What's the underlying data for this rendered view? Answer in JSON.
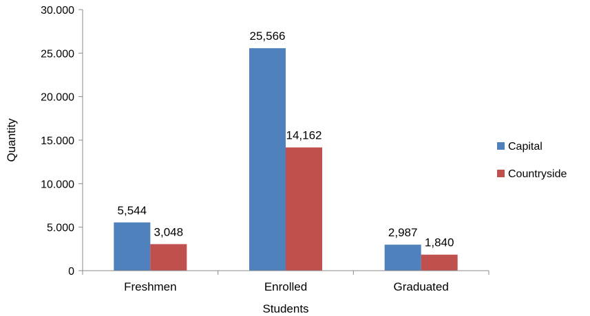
{
  "chart_data": {
    "type": "bar",
    "xlabel": "Students",
    "ylabel": "Quantity",
    "ylim": [
      0,
      30000
    ],
    "yticks": [
      0,
      5000,
      10000,
      15000,
      20000,
      25000,
      30000
    ],
    "ytick_labels": [
      "0",
      "5.000",
      "10.000",
      "15.000",
      "20.000",
      "25.000",
      "30.000"
    ],
    "categories": [
      "Freshmen",
      "Enrolled",
      "Graduated"
    ],
    "series": [
      {
        "name": "Capital",
        "color": "#4F81BD",
        "values": [
          5544,
          25566,
          2987
        ],
        "labels": [
          "5,544",
          "25,566",
          "2,987"
        ]
      },
      {
        "name": "Countryside",
        "color": "#C0504D",
        "values": [
          3048,
          14162,
          1840
        ],
        "labels": [
          "3,048",
          "14,162",
          "1,840"
        ]
      }
    ],
    "legend_position": "right",
    "grid": false
  }
}
